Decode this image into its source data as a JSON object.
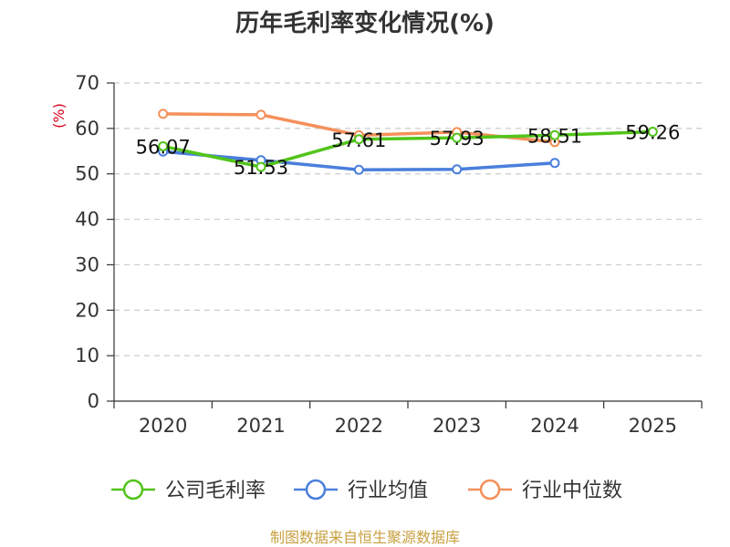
{
  "chart_data": {
    "type": "line",
    "title": "历年毛利率变化情况(%)",
    "ylabel": "(%)",
    "xlabel": "",
    "categories": [
      "2020",
      "2021",
      "2022",
      "2023",
      "2024",
      "2025"
    ],
    "yticks": [
      "0",
      "10",
      "20",
      "30",
      "40",
      "50",
      "60",
      "70"
    ],
    "ylim": [
      0,
      70
    ],
    "grid": true,
    "legend_position": "bottom",
    "series": [
      {
        "name": "公司毛利率",
        "color": "#52c41a",
        "values": [
          56.07,
          51.53,
          57.61,
          57.93,
          58.51,
          59.26
        ],
        "labels": [
          "56.07",
          "51.53",
          "57.61",
          "57.93",
          "58.51",
          "59.26"
        ]
      },
      {
        "name": "行业均值",
        "color": "#4a7fdc",
        "values": [
          54.9,
          53.0,
          50.9,
          51.0,
          52.4,
          null
        ]
      },
      {
        "name": "行业中位数",
        "color": "#f5905a",
        "values": [
          63.2,
          63.0,
          58.5,
          59.2,
          57.0,
          null
        ]
      }
    ],
    "source": "制图数据来自恒生聚源数据库",
    "unit_color": "#d9001b",
    "source_color": "#c8a040"
  }
}
